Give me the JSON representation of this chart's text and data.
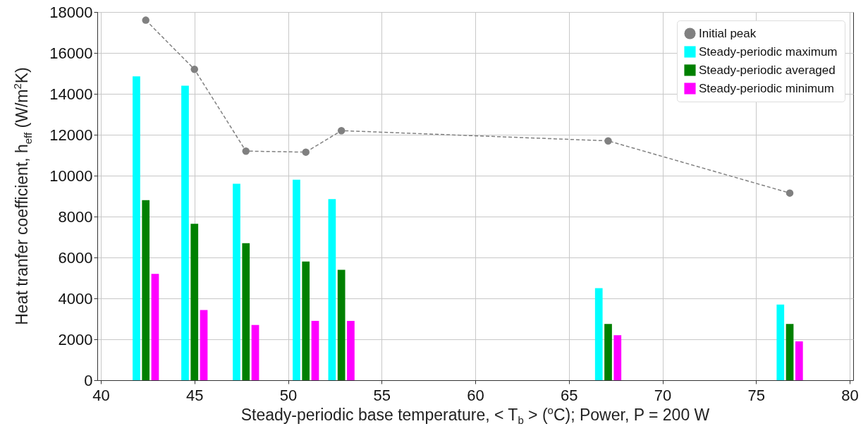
{
  "chart_data": {
    "type": "bar",
    "xlabel": "Steady-periodic base temperature,  < T$_{b}$ > ($^{o}$C); Power, P =  200 W",
    "ylabel": "Heat tranfer coefficient, h$_{eff}$ (W/m$^{2}$K)",
    "series": [
      {
        "name": "Initial peak",
        "type": "line",
        "color": "#808080",
        "marker": "circle",
        "line_style": "dashed",
        "x": [
          42.4,
          45.0,
          47.75,
          50.95,
          52.85,
          67.1,
          76.8
        ],
        "values": [
          17600,
          15200,
          11200,
          11150,
          12200,
          11700,
          9150
        ]
      },
      {
        "name": "Steady-periodic maximum",
        "color": "#00ffff",
        "x": [
          41.9,
          44.5,
          47.25,
          50.45,
          52.35,
          66.6,
          76.3
        ],
        "values": [
          14850,
          14400,
          9600,
          9800,
          8850,
          4500,
          3700
        ]
      },
      {
        "name": "Steady-periodic averaged",
        "color": "#008000",
        "x": [
          42.4,
          45.0,
          47.75,
          50.95,
          52.85,
          67.1,
          76.8
        ],
        "values": [
          8800,
          7650,
          6700,
          5800,
          5400,
          2750,
          2750
        ]
      },
      {
        "name": "Steady-periodic minimum",
        "color": "#ff00ff",
        "x": [
          42.9,
          45.5,
          48.25,
          51.45,
          53.35,
          67.6,
          77.3
        ],
        "values": [
          5200,
          3430,
          2700,
          2900,
          2900,
          2200,
          1900
        ]
      }
    ],
    "xlim": [
      40,
      80
    ],
    "xticks": [
      40,
      45,
      50,
      55,
      60,
      65,
      70,
      75,
      80
    ],
    "ylim": [
      0,
      18000
    ],
    "yticks": [
      0,
      2000,
      4000,
      6000,
      8000,
      10000,
      12000,
      14000,
      16000,
      18000
    ],
    "grid": true,
    "legend": "top right"
  }
}
